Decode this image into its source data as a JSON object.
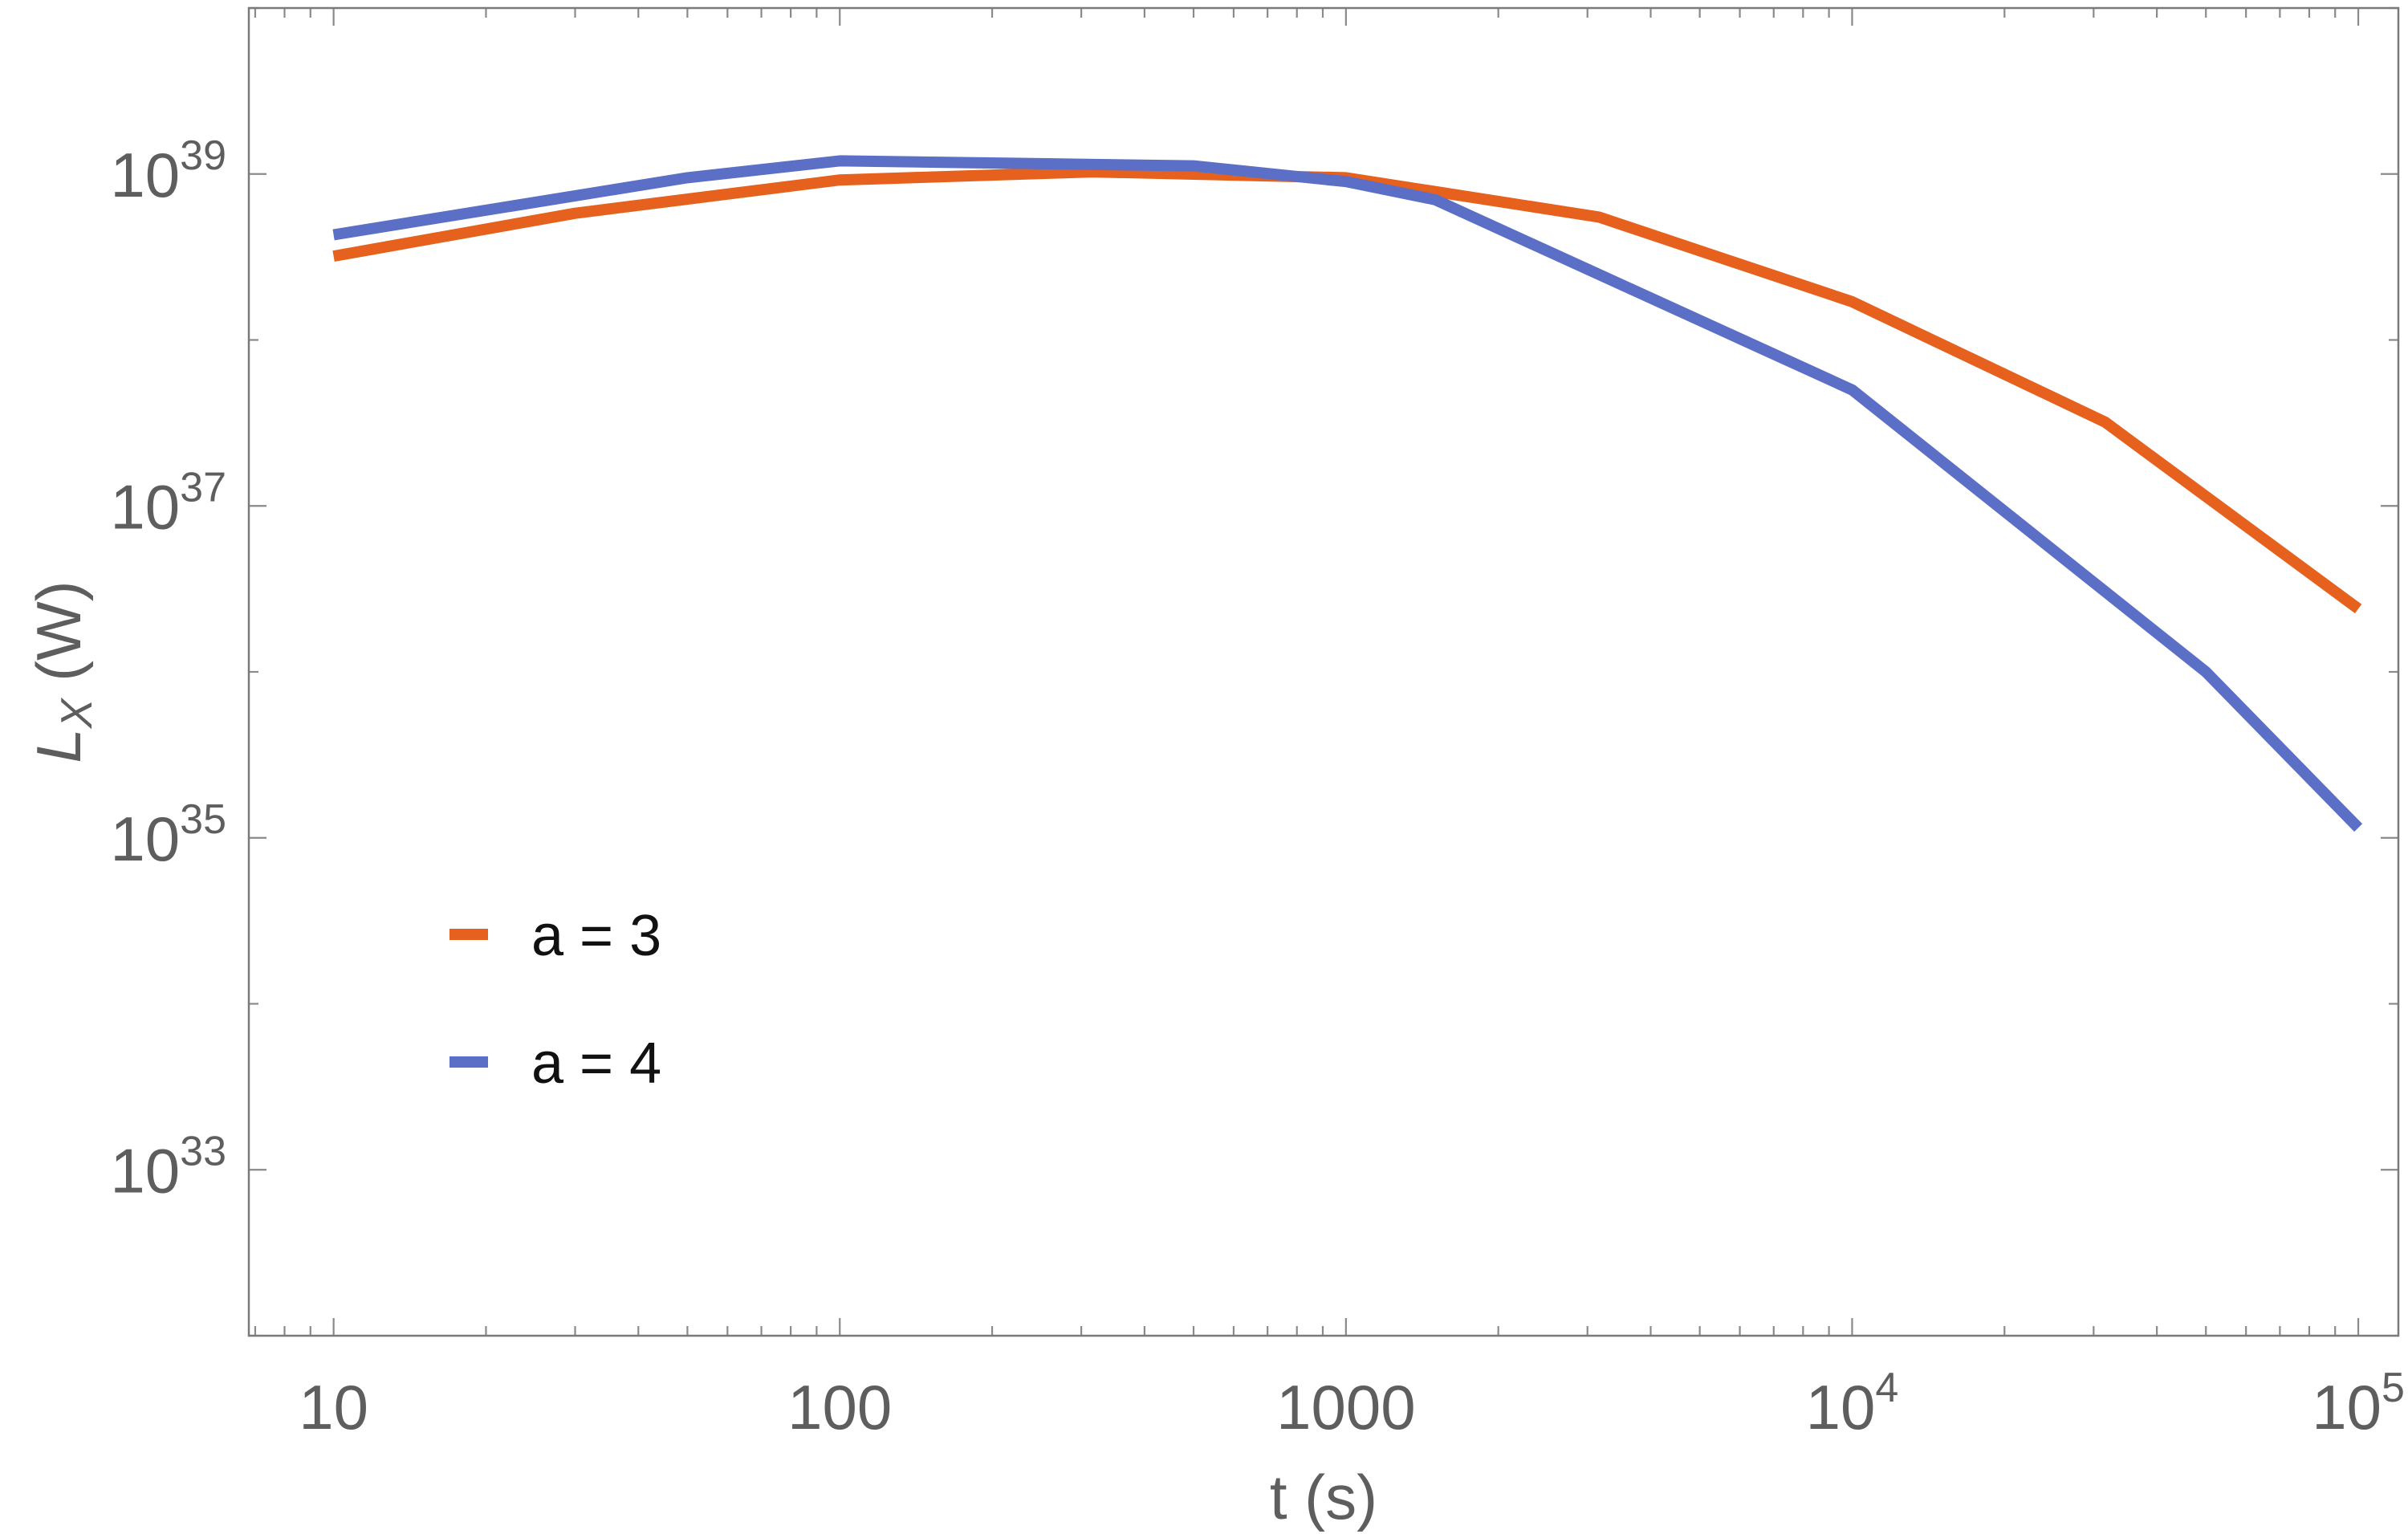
{
  "chart_data": {
    "type": "line",
    "xlabel": "t  (s)",
    "ylabel": {
      "main": "L",
      "sub": "X",
      "unit": " (W)"
    },
    "x_scale": "log",
    "y_scale": "log",
    "xlim": [
      6.8,
      120000
    ],
    "ylim": [
      1e+32,
      1e+40
    ],
    "x_ticks": [
      {
        "value": 10,
        "base": "10",
        "exp": ""
      },
      {
        "value": 100,
        "base": "100",
        "exp": ""
      },
      {
        "value": 1000,
        "base": "1000",
        "exp": ""
      },
      {
        "value": 10000,
        "base": "10",
        "exp": "4"
      },
      {
        "value": 100000,
        "base": "10",
        "exp": "5"
      }
    ],
    "y_ticks": [
      {
        "value": 1e+33,
        "base": "10",
        "exp": "33"
      },
      {
        "value": 1e+35,
        "base": "10",
        "exp": "35"
      },
      {
        "value": 1e+37,
        "base": "10",
        "exp": "37"
      },
      {
        "value": 1e+39,
        "base": "10",
        "exp": "39"
      }
    ],
    "grid": false,
    "legend_position": "lower-left",
    "series": [
      {
        "name": "a = 3",
        "color": "#e5611d",
        "x": [
          10,
          30,
          100,
          316,
          1000,
          3160,
          10000,
          31600,
          100000
        ],
        "y": [
          3.2e+38,
          5.8e+38,
          9.2e+38,
          1.03e+39,
          9.5e+38,
          5.5e+38,
          1.7e+38,
          3.2e+37,
          2.4e+36
        ]
      },
      {
        "name": "a = 4",
        "color": "#5c6fc6",
        "x": [
          10,
          50,
          100,
          500,
          1000,
          1500,
          10000,
          50000,
          100000
        ],
        "y": [
          4.3e+38,
          9.5e+38,
          1.2e+39,
          1.12e+39,
          9e+38,
          7e+38,
          5e+37,
          1e+36,
          1.15e+35
        ]
      }
    ]
  }
}
